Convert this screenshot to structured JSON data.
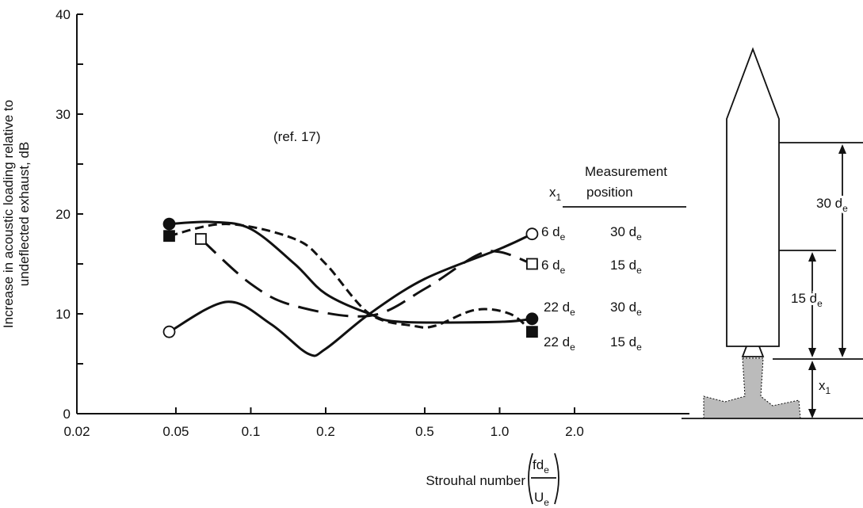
{
  "chart_data": {
    "type": "line",
    "annotation": "(ref. 17)",
    "y_label": [
      "Increase in acoustic loading relative to",
      "undeflected exhaust, dB"
    ],
    "x_label": "Strouhal number",
    "x_label_fraction": {
      "numerator": {
        "text": "fd",
        "sub": "e"
      },
      "denominator": {
        "text": "U",
        "sub": "e"
      }
    },
    "legend_header": {
      "x1": {
        "text": "x",
        "sub": "1"
      },
      "position": [
        "Measurement",
        "position"
      ]
    },
    "log_x": true,
    "xlim": [
      0.02,
      2
    ],
    "ylim": [
      0,
      40
    ],
    "xticks": [
      0.02,
      0.05,
      0.1,
      0.2,
      0.5,
      {
        "value": 1,
        "label": "1.0"
      },
      {
        "value": 2,
        "label": "2.0"
      }
    ],
    "yticks": [
      0,
      10,
      20,
      30,
      40
    ],
    "yminor": [
      5,
      15,
      25,
      35
    ],
    "series": [
      {
        "x1": {
          "text": "6 d",
          "sub": "e"
        },
        "position": {
          "text": "30 d",
          "sub": "e"
        },
        "color": "#111111",
        "line": "solid",
        "marker": "open-circle",
        "x": [
          0.047,
          0.08,
          0.12,
          0.17,
          0.2,
          0.3,
          0.5,
          1.0,
          1.35
        ],
        "values": [
          8.2,
          11.2,
          9,
          6,
          6.5,
          10,
          13.5,
          16.5,
          18
        ]
      },
      {
        "x1": {
          "text": "6 d",
          "sub": "e"
        },
        "position": {
          "text": "15 d",
          "sub": "e"
        },
        "color": "#111111",
        "line": "long-dash",
        "marker": "open-square",
        "x": [
          0.063,
          0.1,
          0.15,
          0.3,
          0.5,
          0.8,
          1.0,
          1.35
        ],
        "values": [
          17.5,
          13,
          10.8,
          9.8,
          12.5,
          15.8,
          16.2,
          15
        ]
      },
      {
        "x1": {
          "text": "22 d",
          "sub": "e"
        },
        "position": {
          "text": "30 d",
          "sub": "e"
        },
        "color": "#111111",
        "line": "solid",
        "marker": "filled-circle",
        "x": [
          0.047,
          0.07,
          0.1,
          0.15,
          0.2,
          0.3,
          0.4,
          1.0,
          1.35
        ],
        "values": [
          19,
          19.2,
          18.5,
          15,
          12,
          10,
          9.2,
          9.2,
          9.5
        ]
      },
      {
        "x1": {
          "text": "22 d",
          "sub": "e"
        },
        "position": {
          "text": "15 d",
          "sub": "e"
        },
        "color": "#111111",
        "line": "short-dash",
        "marker": "filled-square",
        "x": [
          0.047,
          0.08,
          0.15,
          0.2,
          0.3,
          0.45,
          0.55,
          0.8,
          1.1,
          1.35
        ],
        "values": [
          17.8,
          19,
          17.5,
          15,
          10,
          8.8,
          8.8,
          10.4,
          10,
          8.2
        ]
      }
    ],
    "rocket_labels": {
      "d30": {
        "text": "30 d",
        "sub": "e"
      },
      "d15": {
        "text": "15 d",
        "sub": "e"
      },
      "x1": {
        "text": "x",
        "sub": "1"
      }
    }
  }
}
